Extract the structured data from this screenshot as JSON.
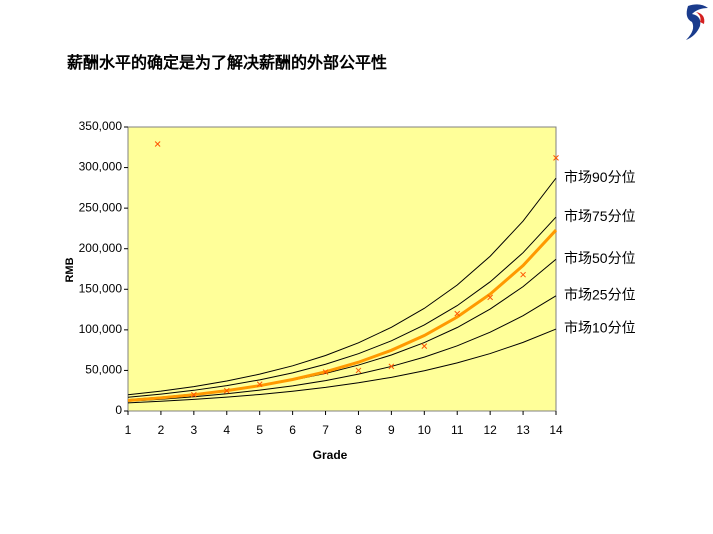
{
  "chart_data": {
    "type": "line",
    "title": "薪酬水平的确定是为了解决薪酬的外部公平性",
    "x_label": "Grade",
    "y_label": "RMB",
    "x": [
      1,
      2,
      3,
      4,
      5,
      6,
      7,
      8,
      9,
      10,
      11,
      12,
      13,
      14
    ],
    "xlim": [
      1,
      14
    ],
    "xticks": [
      1,
      2,
      3,
      4,
      5,
      6,
      7,
      8,
      9,
      10,
      11,
      12,
      13,
      14
    ],
    "ylim": [
      0,
      350000
    ],
    "yticks": [
      0,
      {
        "value": 50000,
        "label": "50,000"
      },
      {
        "value": 100000,
        "label": "100,000"
      },
      {
        "value": 150000,
        "label": "150,000"
      },
      {
        "value": 200000,
        "label": "200,000"
      },
      {
        "value": 250000,
        "label": "250,000"
      },
      {
        "value": 300000,
        "label": "300,000"
      },
      {
        "value": 350000,
        "label": "350,000"
      }
    ],
    "plot_background": "#ffff99",
    "series": [
      {
        "name": "市场90分位",
        "color": "#000000",
        "values": [
          20000,
          24500,
          30100,
          37000,
          45400,
          55700,
          68400,
          84000,
          103100,
          126500,
          155300,
          190700,
          234100,
          287000
        ]
      },
      {
        "name": "市场75分位",
        "color": "#000000",
        "values": [
          17000,
          20800,
          25500,
          31300,
          38400,
          47000,
          57600,
          70600,
          86500,
          106000,
          129900,
          159200,
          195100,
          239000
        ]
      },
      {
        "name": "市场50分位",
        "color": "#000000",
        "values": [
          14000,
          17100,
          20900,
          25500,
          31100,
          38000,
          46300,
          56600,
          69000,
          84300,
          102900,
          125600,
          153300,
          187000
        ]
      },
      {
        "name": "市场25分位",
        "color": "#000000",
        "values": [
          12000,
          14500,
          17600,
          21200,
          25700,
          31000,
          37500,
          45400,
          54900,
          66400,
          80300,
          97100,
          117400,
          142000
        ]
      },
      {
        "name": "市场10分位",
        "color": "#000000",
        "values": [
          10000,
          12000,
          14300,
          17100,
          20400,
          24400,
          29100,
          34800,
          41500,
          49600,
          59300,
          70800,
          84600,
          101000
        ]
      },
      {
        "color": "#ff9900",
        "width": 3,
        "values": [
          13000,
          16200,
          20100,
          25100,
          31200,
          38800,
          48300,
          60100,
          74800,
          93000,
          115800,
          144100,
          179300,
          223000
        ]
      }
    ],
    "scatter": {
      "color": "#ff5500",
      "x": [
        1.9,
        3,
        4,
        5,
        7,
        8,
        9,
        10,
        11,
        12,
        13,
        14
      ],
      "values": [
        329000,
        20000,
        25000,
        33000,
        48000,
        50000,
        55000,
        80000,
        120000,
        140000,
        168000,
        312000
      ]
    }
  }
}
